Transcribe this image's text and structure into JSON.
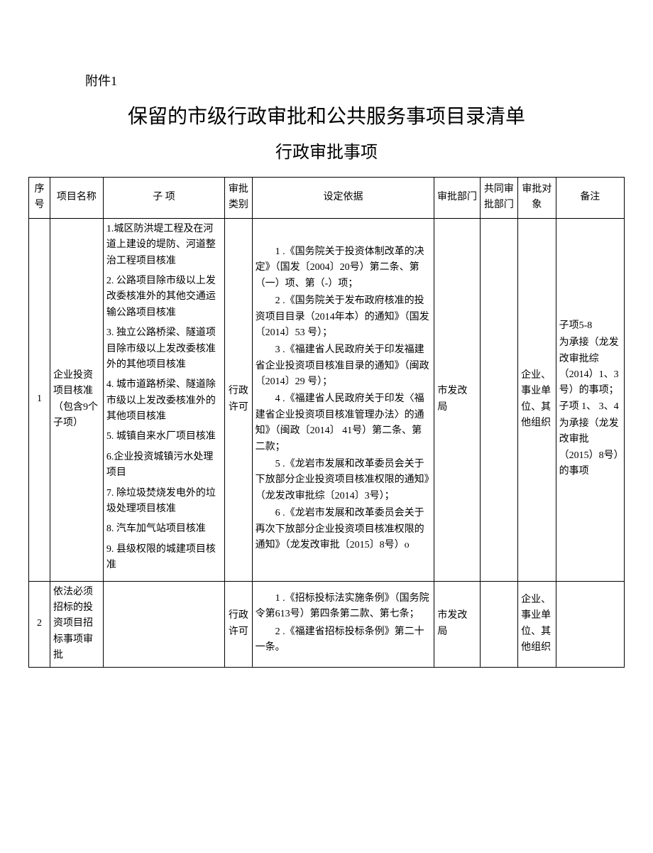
{
  "attachment": "附件1",
  "title": "保留的市级行政审批和公共服务事项目录清单",
  "subtitle": "行政审批事项",
  "columns": {
    "seq": "序号",
    "name": "项目名称",
    "sub": "子 项",
    "cat": "审批类别",
    "basis": "设定依据",
    "dept": "审批部门",
    "codept": "共同审批部门",
    "obj": "审批对象",
    "note": "备注"
  },
  "rows": [
    {
      "seq": "1",
      "name": "企业投资项目核准（包含9个子项）",
      "sub": [
        "1.城区防洪堤工程及在河道上建设的堤防、河道整治工程项目核准",
        "2. 公路项目除市级以上发改委核准外的其他交通运输公路项目核准",
        "3. 独立公路桥梁、隧道项目除市级以上发改委核准外的其他项目核准",
        "4. 城市道路桥梁、隧道除市级以上发改委核准外的其他项目核准",
        "5. 城镇自来水厂项目核准",
        "6.企业投资城镇污水处理项目",
        "7. 除垃圾焚烧发电外的垃圾处理项目核准",
        "8. 汽车加气站项目核准",
        "9. 县级权限的城建项目核准"
      ],
      "cat": "行政许可",
      "basis": [
        "1 .《国务院关于投资体制改革的决定》（国发〔2004〕20号）第二条、第（一）项、第（-）项；",
        "2 .《国务院关于发布政府核准的投资项目目录（2014年本）的通知》（国发〔2014〕53 号）；",
        "3 .《福建省人民政府关于印发福建省企业投资项目核准目录的通知》（闽政〔2014〕29 号）；",
        "4 .《福建省人民政府关于印发〈福建省企业投资项目核准管理办法〉的通知》（闽政〔2014〕 41号）第二条、第二款；",
        "5 .《龙岩市发展和改革委员会关于下放部分企业投资项目核准权限的通知》（龙发改审批综〔2014〕3号）；",
        "6 .《龙岩市发展和改革委员会关于再次下放部分企业投资项目核准权限的通知》（龙发改审批〔2015〕8号）o"
      ],
      "dept": "市发改局",
      "codept": "",
      "obj": "企业、事业单位、其他组织",
      "note": [
        "子项5-8",
        "为承接（龙发改审批综（2014）1、3  号）的事项；子项 1、 3、4",
        "为承接（龙发改审批（2015）8号）的事项"
      ]
    },
    {
      "seq": "2",
      "name": "依法必须招标的投资项目招标事项审批",
      "sub": [],
      "cat": "行政许可",
      "basis": [
        "1 .《招标投标法实施条例》（国务院令第613号）第四条第二款、第七条；",
        "2 .《福建省招标投标条例》第二十一条。"
      ],
      "dept": "市发改局",
      "codept": "",
      "obj": "企业、事业单位、其他组织",
      "note": []
    }
  ]
}
